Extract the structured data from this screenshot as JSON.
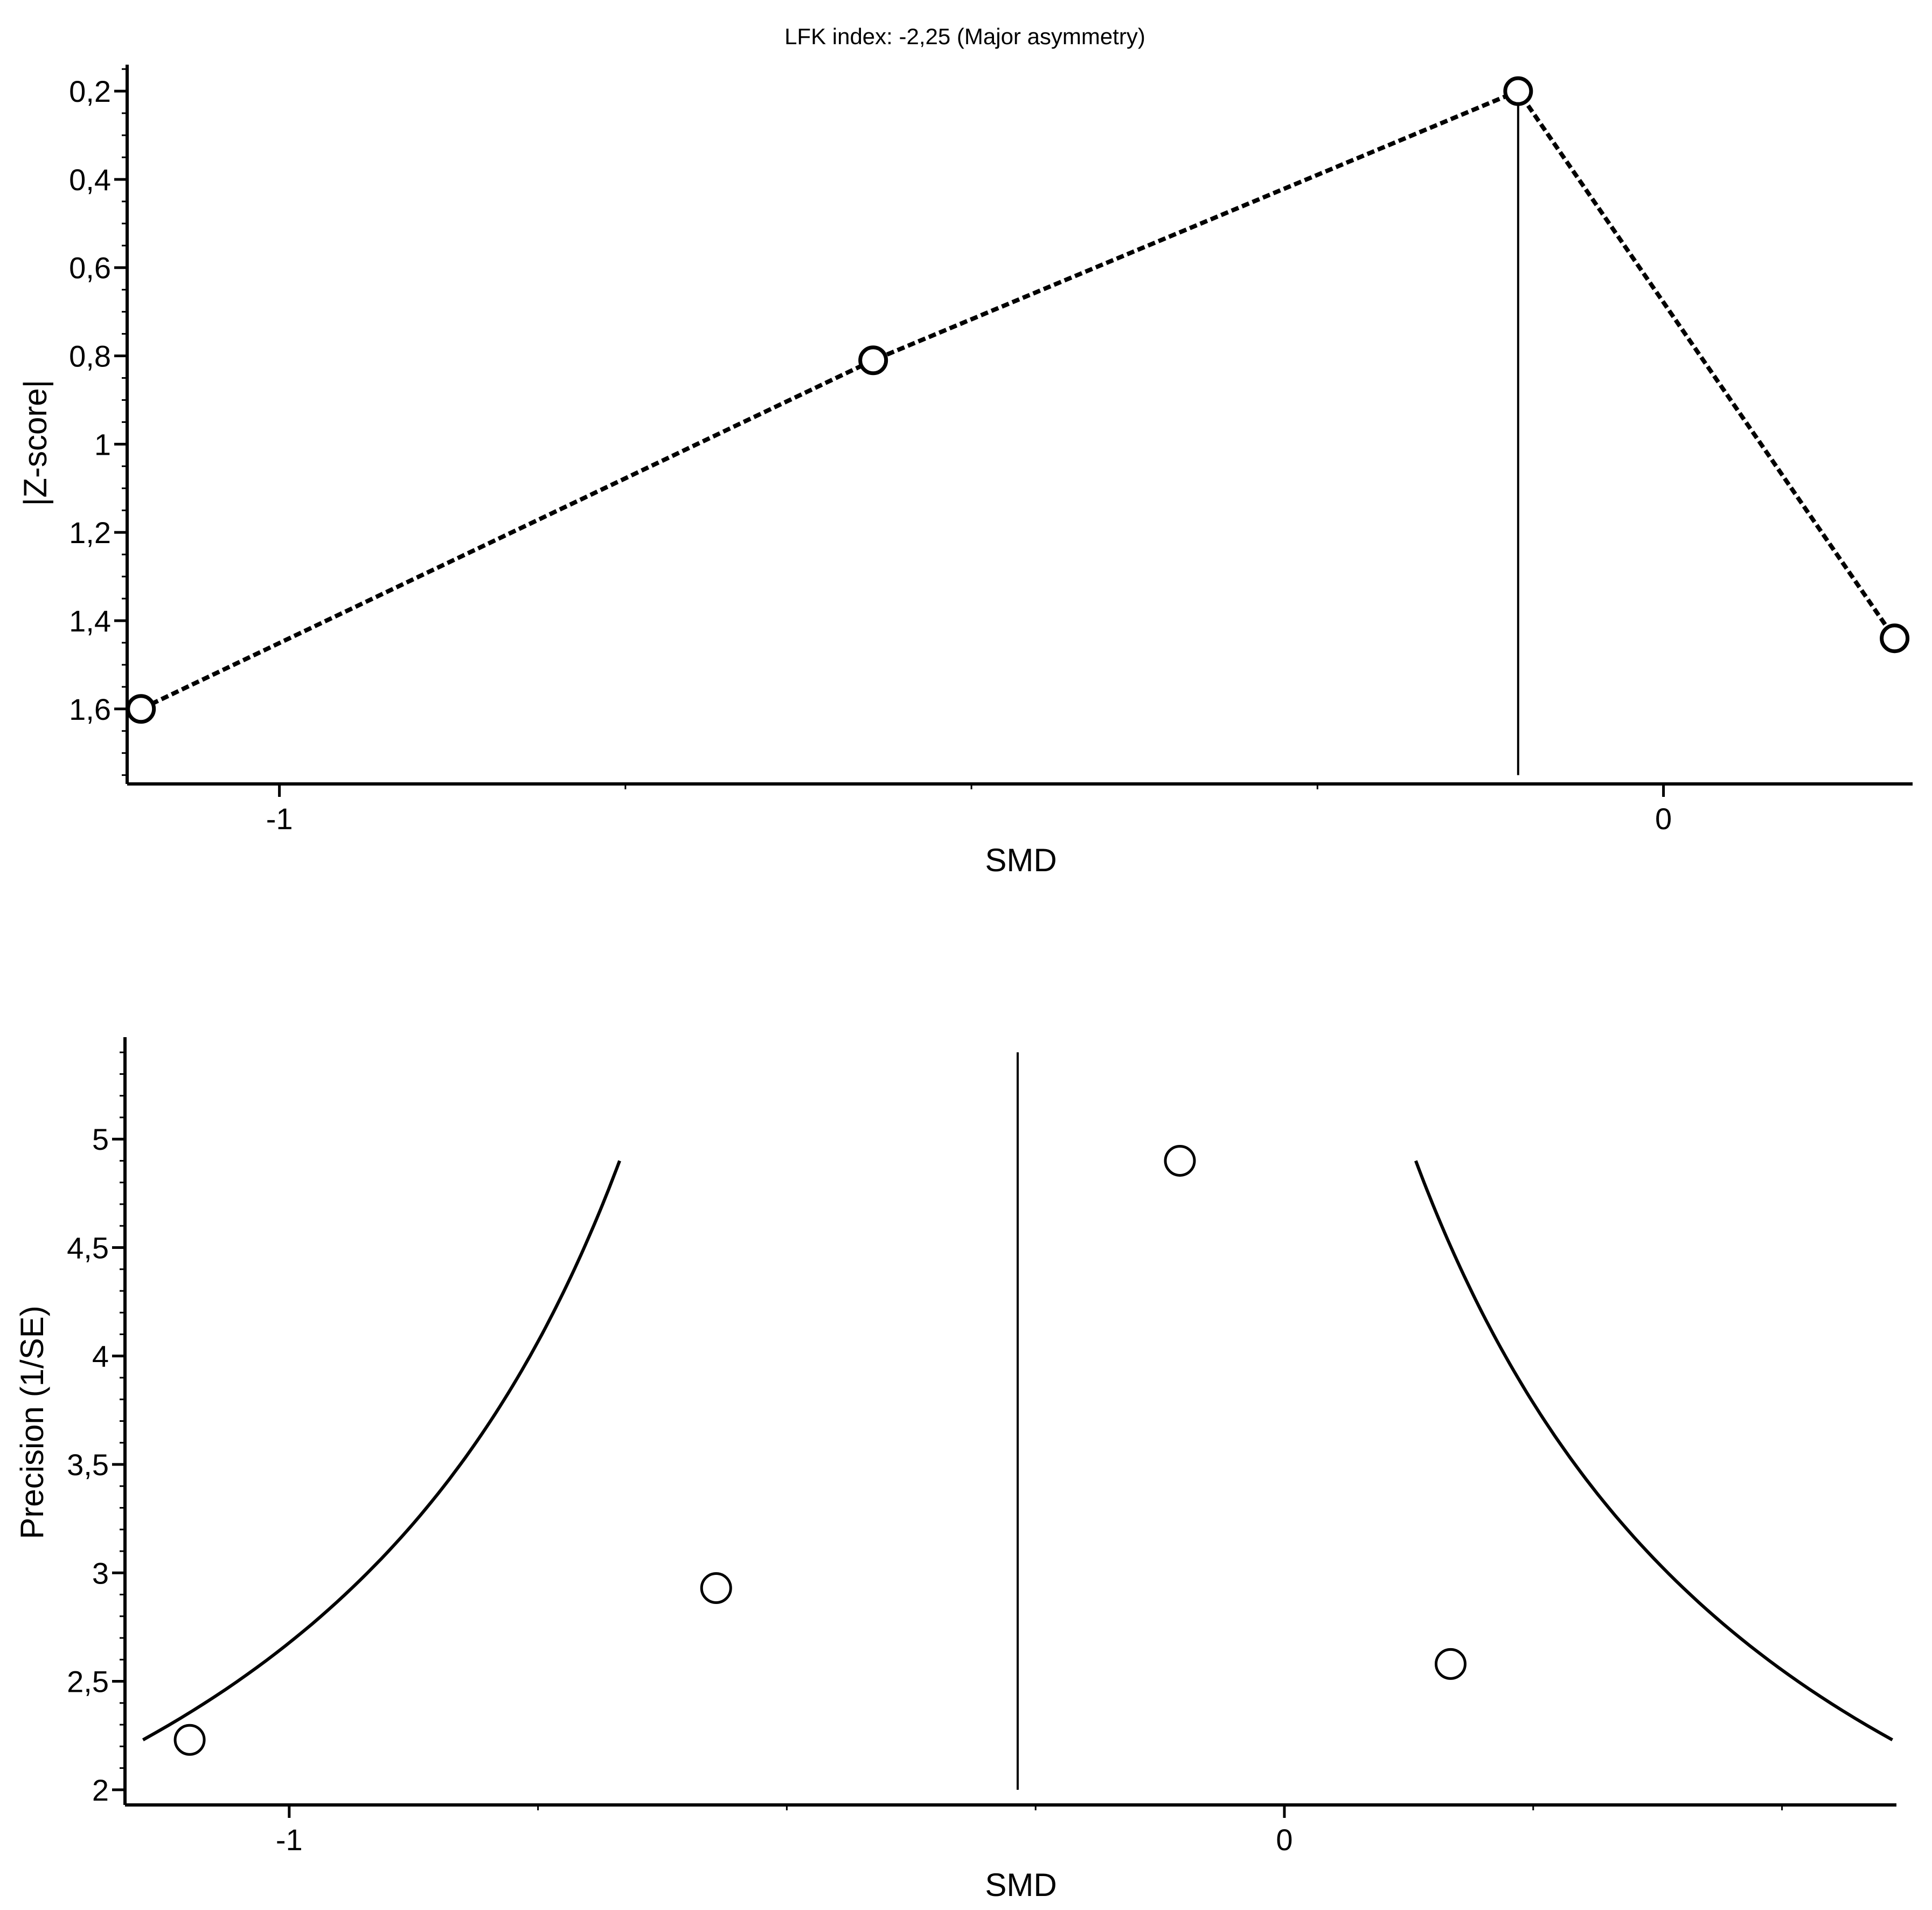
{
  "chart_data": [
    {
      "type": "line",
      "title": "LFK index: -2,25 (Major asymmetry)",
      "xlabel": "SMD",
      "ylabel": "|Z-score|",
      "y_inverted": true,
      "xlim": [
        -1.11,
        0.18
      ],
      "ylim": [
        0.14,
        1.77
      ],
      "x_ticks": [
        {
          "value": -1,
          "label": "-1"
        },
        {
          "value": 0,
          "label": "0"
        }
      ],
      "y_ticks": [
        {
          "value": 0.2,
          "label": "0,2"
        },
        {
          "value": 0.4,
          "label": "0,4"
        },
        {
          "value": 0.6,
          "label": "0,6"
        },
        {
          "value": 0.8,
          "label": "0,8"
        },
        {
          "value": 1,
          "label": "1"
        },
        {
          "value": 1.2,
          "label": "1,2"
        },
        {
          "value": 1.4,
          "label": "1,4"
        },
        {
          "value": 1.6,
          "label": "1,6"
        }
      ],
      "x_minor_step": 0.25,
      "y_minor_step": 0.05,
      "series": [
        {
          "style": "dotted",
          "marker": "open-circle",
          "x": [
            -1.1,
            -0.571,
            -0.105,
            0.167
          ],
          "y": [
            1.6,
            0.81,
            0.2,
            1.44
          ]
        }
      ],
      "reference_line": {
        "x": -0.105,
        "y_range": [
          0.2,
          1.75
        ]
      },
      "grid": false,
      "color_line": "#000000",
      "color_marker_fill": "#ffffff"
    },
    {
      "type": "scatter",
      "title": "",
      "xlabel": "SMD",
      "ylabel": "Precision (1/SE)",
      "xlim": [
        -1.165,
        0.615
      ],
      "ylim": [
        1.93,
        5.47
      ],
      "x_ticks": [
        {
          "value": -1,
          "label": "-1"
        },
        {
          "value": 0,
          "label": "0"
        }
      ],
      "y_ticks": [
        {
          "value": 2,
          "label": "2"
        },
        {
          "value": 2.5,
          "label": "2,5"
        },
        {
          "value": 3,
          "label": "3"
        },
        {
          "value": 3.5,
          "label": "3,5"
        },
        {
          "value": 4,
          "label": "4"
        },
        {
          "value": 4.5,
          "label": "4,5"
        },
        {
          "value": 5,
          "label": "5"
        }
      ],
      "x_minor_step": 0.25,
      "y_minor_step": 0.1,
      "series": [
        {
          "marker": "open-circle",
          "x": [
            -1.1,
            -0.571,
            -0.105,
            0.167
          ],
          "y": [
            2.23,
            2.93,
            4.9,
            2.58
          ]
        }
      ],
      "reference_line": {
        "x": -0.268,
        "y_range": [
          2,
          5.4
        ]
      },
      "funnel": {
        "center": -0.268,
        "z": 1.96,
        "precision_range": [
          2.23,
          4.9
        ]
      },
      "grid": false,
      "color_line": "#000000",
      "color_marker_fill": "#ffffff"
    }
  ]
}
